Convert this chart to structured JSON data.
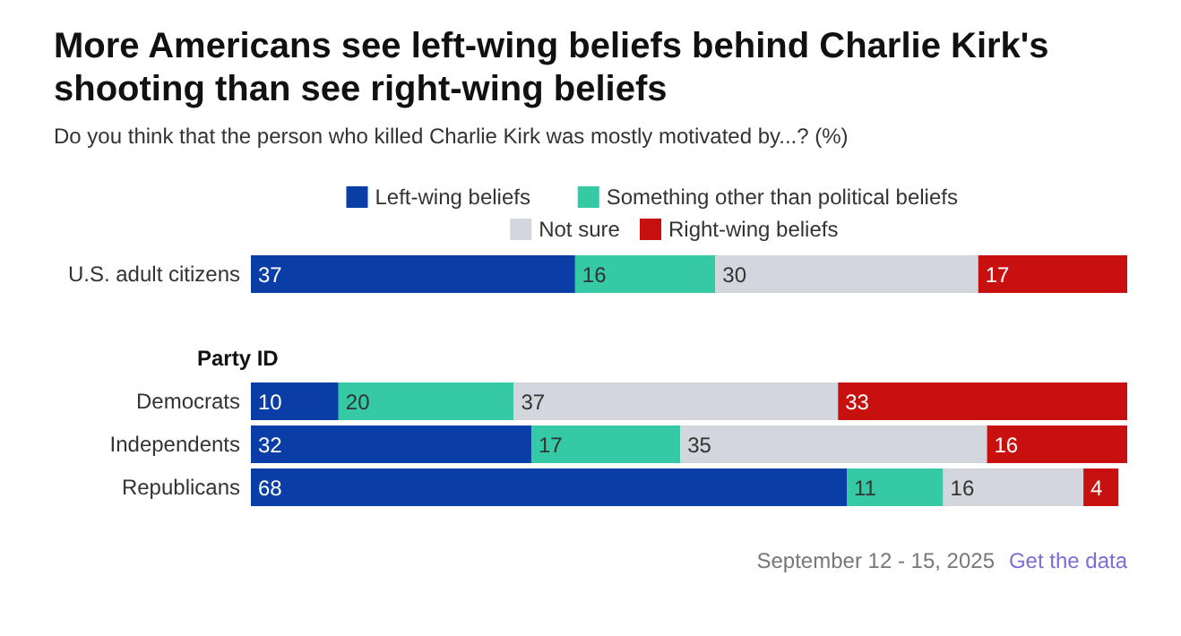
{
  "chart_data": {
    "type": "bar",
    "orientation": "horizontal",
    "stacked": true,
    "title": "More Americans see left-wing beliefs behind Charlie Kirk's shooting than see right-wing beliefs",
    "subtitle": "Do you think that the person who killed Charlie Kirk was mostly motivated by...? (%)",
    "categories": [
      "U.S. adult citizens",
      "Party ID",
      "Democrats",
      "Independents",
      "Republicans"
    ],
    "series": [
      {
        "name": "Left-wing beliefs",
        "color": "#0a3ea6",
        "values": [
          37,
          null,
          10,
          32,
          68
        ]
      },
      {
        "name": "Something other than political beliefs",
        "color": "#35c9a5",
        "values": [
          16,
          null,
          20,
          17,
          11
        ]
      },
      {
        "name": "Not sure",
        "color": "#d4d6dd",
        "values": [
          30,
          null,
          37,
          35,
          16
        ]
      },
      {
        "name": "Right-wing beliefs",
        "color": "#c8100f",
        "values": [
          17,
          null,
          33,
          16,
          4
        ]
      }
    ],
    "xlim": [
      0,
      100
    ],
    "tick_labels": "y",
    "data_labels": true,
    "legend": "top",
    "grid": false,
    "annotations": [
      "September 12 - 15, 2025",
      "Get the data"
    ]
  }
}
